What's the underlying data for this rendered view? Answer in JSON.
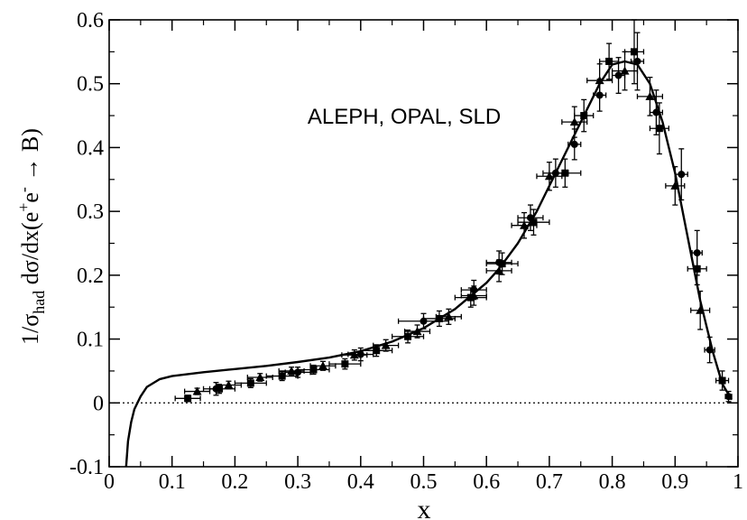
{
  "chart_data": {
    "type": "scatter",
    "title": "",
    "annotation": "ALEPH, OPAL, SLD",
    "xlabel": "x",
    "ylabel": {
      "prefix": "1/σ",
      "sub": "had",
      "mid": "  dσ/dx(e",
      "sup1": "+",
      "mid2": "e",
      "sup2": "-",
      "suffix": " → B)"
    },
    "xlim": [
      0,
      1
    ],
    "ylim": [
      -0.1,
      0.6
    ],
    "xticks": [
      "0",
      "0.1",
      "0.2",
      "0.3",
      "0.4",
      "0.5",
      "0.6",
      "0.7",
      "0.8",
      "0.9",
      "1"
    ],
    "yticks": [
      "-0.1",
      "0",
      "0.1",
      "0.2",
      "0.3",
      "0.4",
      "0.5",
      "0.6"
    ],
    "reference_line": {
      "y": 0,
      "style": "dotted"
    },
    "curve": {
      "x": [
        0.027,
        0.03,
        0.035,
        0.04,
        0.05,
        0.06,
        0.08,
        0.1,
        0.15,
        0.2,
        0.25,
        0.3,
        0.35,
        0.4,
        0.45,
        0.5,
        0.55,
        0.6,
        0.62,
        0.65,
        0.68,
        0.7,
        0.72,
        0.75,
        0.78,
        0.8,
        0.82,
        0.84,
        0.86,
        0.88,
        0.9,
        0.92,
        0.94,
        0.96,
        0.975,
        0.99
      ],
      "y": [
        -0.1,
        -0.06,
        -0.03,
        -0.01,
        0.01,
        0.025,
        0.037,
        0.042,
        0.048,
        0.053,
        0.058,
        0.064,
        0.071,
        0.081,
        0.096,
        0.117,
        0.147,
        0.188,
        0.21,
        0.25,
        0.3,
        0.34,
        0.38,
        0.44,
        0.5,
        0.53,
        0.535,
        0.53,
        0.5,
        0.44,
        0.36,
        0.26,
        0.16,
        0.08,
        0.03,
        0.005
      ]
    },
    "series": [
      {
        "marker": "square",
        "x": [
          0.125,
          0.175,
          0.225,
          0.275,
          0.325,
          0.375,
          0.425,
          0.475,
          0.525,
          0.575,
          0.625,
          0.675,
          0.725,
          0.755,
          0.795,
          0.835,
          0.875,
          0.935,
          0.975
        ],
        "y": [
          0.007,
          0.022,
          0.031,
          0.042,
          0.052,
          0.061,
          0.082,
          0.104,
          0.132,
          0.165,
          0.218,
          0.283,
          0.36,
          0.45,
          0.535,
          0.55,
          0.43,
          0.21,
          0.035
        ],
        "yerr": [
          0.005,
          0.007,
          0.007,
          0.007,
          0.007,
          0.008,
          0.009,
          0.01,
          0.012,
          0.015,
          0.017,
          0.02,
          0.022,
          0.025,
          0.028,
          0.05,
          0.04,
          0.025,
          0.015
        ],
        "xerr": [
          0.02,
          0.025,
          0.025,
          0.025,
          0.025,
          0.025,
          0.025,
          0.025,
          0.025,
          0.025,
          0.025,
          0.025,
          0.025,
          0.015,
          0.015,
          0.015,
          0.015,
          0.015,
          0.01
        ]
      },
      {
        "marker": "triangle",
        "x": [
          0.14,
          0.19,
          0.24,
          0.29,
          0.34,
          0.39,
          0.44,
          0.49,
          0.54,
          0.58,
          0.62,
          0.66,
          0.7,
          0.74,
          0.78,
          0.82,
          0.86,
          0.9,
          0.94
        ],
        "y": [
          0.018,
          0.028,
          0.04,
          0.05,
          0.058,
          0.075,
          0.09,
          0.112,
          0.135,
          0.168,
          0.207,
          0.278,
          0.355,
          0.44,
          0.505,
          0.52,
          0.48,
          0.34,
          0.145
        ],
        "yerr": [
          0.005,
          0.006,
          0.006,
          0.006,
          0.007,
          0.008,
          0.009,
          0.01,
          0.012,
          0.015,
          0.017,
          0.02,
          0.022,
          0.024,
          0.026,
          0.03,
          0.03,
          0.03,
          0.03
        ],
        "xerr": [
          0.02,
          0.02,
          0.02,
          0.02,
          0.02,
          0.02,
          0.02,
          0.02,
          0.02,
          0.02,
          0.02,
          0.02,
          0.02,
          0.02,
          0.02,
          0.02,
          0.02,
          0.015,
          0.015
        ]
      },
      {
        "marker": "circle",
        "x": [
          0.17,
          0.3,
          0.4,
          0.5,
          0.58,
          0.62,
          0.67,
          0.71,
          0.74,
          0.78,
          0.81,
          0.84,
          0.87,
          0.91,
          0.935,
          0.955,
          0.985
        ],
        "y": [
          0.022,
          0.048,
          0.076,
          0.128,
          0.177,
          0.22,
          0.29,
          0.36,
          0.405,
          0.482,
          0.513,
          0.535,
          0.455,
          0.358,
          0.235,
          0.083,
          0.01
        ],
        "yerr": [
          0.01,
          0.008,
          0.01,
          0.012,
          0.015,
          0.018,
          0.02,
          0.022,
          0.024,
          0.025,
          0.028,
          0.045,
          0.035,
          0.04,
          0.035,
          0.02,
          0.008
        ],
        "xerr": [
          0.01,
          0.02,
          0.02,
          0.04,
          0.02,
          0.02,
          0.02,
          0.02,
          0.01,
          0.01,
          0.01,
          0.01,
          0.01,
          0.01,
          0.008,
          0.008,
          0.005
        ]
      }
    ]
  }
}
